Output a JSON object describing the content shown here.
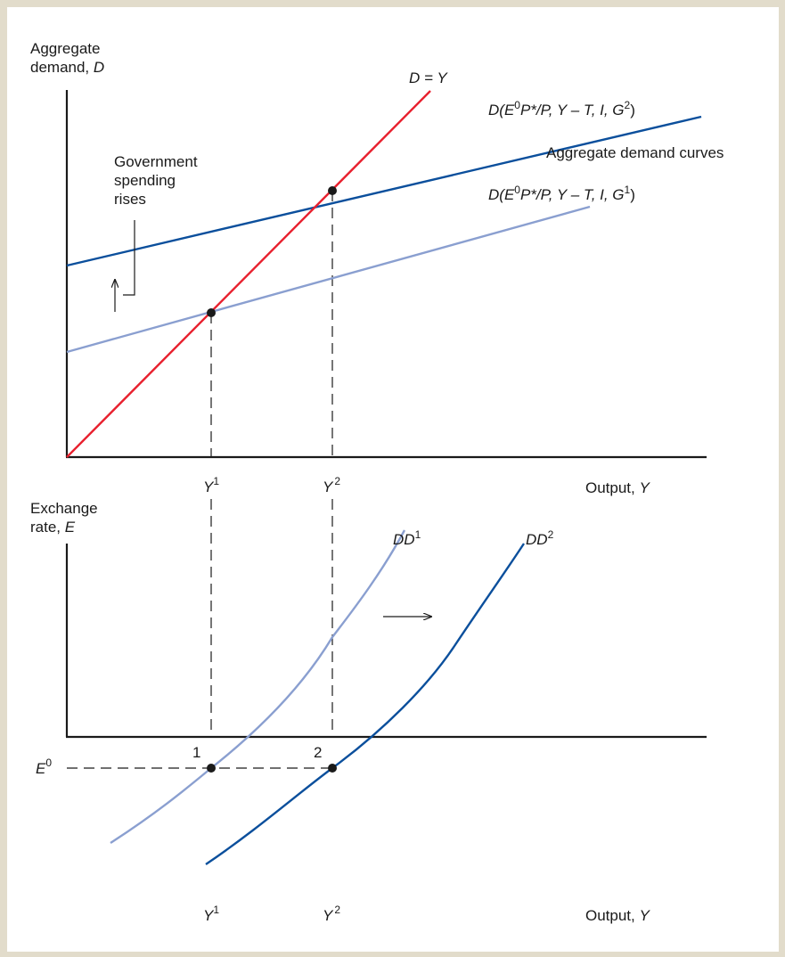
{
  "top_panel": {
    "y_axis_label_line1": "Aggregate",
    "y_axis_label_line2_prefix": "demand, ",
    "y_axis_label_line2_var": "D",
    "line_45_label": "D = Y",
    "curve_g2_label": {
      "prefix": "D(E",
      "sup1": "0",
      "mid": "P*/P, Y – T, I, G",
      "sup2": "2",
      "suffix": ")"
    },
    "curve_g1_label": {
      "prefix": "D(E",
      "sup1": "0",
      "mid": "P*/P, Y – T, I, G",
      "sup2": "1",
      "suffix": ")"
    },
    "curves_caption": "Aggregate demand curves",
    "annotation_lines": [
      "Government",
      "spending",
      "rises"
    ],
    "x_tick_1": {
      "base": "Y",
      "sup": "1"
    },
    "x_tick_2": {
      "base": "Y",
      "sup": "2"
    },
    "x_axis_label_prefix": "Output, ",
    "x_axis_label_var": "Y"
  },
  "bottom_panel": {
    "y_axis_label_line1": "Exchange",
    "y_axis_label_line2_prefix": "rate, ",
    "y_axis_label_line2_var": "E",
    "curve_dd1_label": {
      "base": "DD",
      "sup": "1"
    },
    "curve_dd2_label": {
      "base": "DD",
      "sup": "2"
    },
    "e0_label": {
      "base": "E",
      "sup": "0"
    },
    "point_1_label": "1",
    "point_2_label": "2",
    "x_tick_1": {
      "base": "Y",
      "sup": "1"
    },
    "x_tick_2": {
      "base": "Y",
      "sup": "2"
    },
    "x_axis_label_prefix": "Output, ",
    "x_axis_label_var": "Y"
  },
  "colors": {
    "border": "#e2dccb",
    "axis": "#1a1a1a",
    "line_45": "#e8202e",
    "ad_curve_g2": "#0b4f9c",
    "ad_curve_g1": "#8a9fd0",
    "dd1": "#8a9fd0",
    "dd2": "#0b4f9c",
    "guide": "#1a1a1a"
  }
}
